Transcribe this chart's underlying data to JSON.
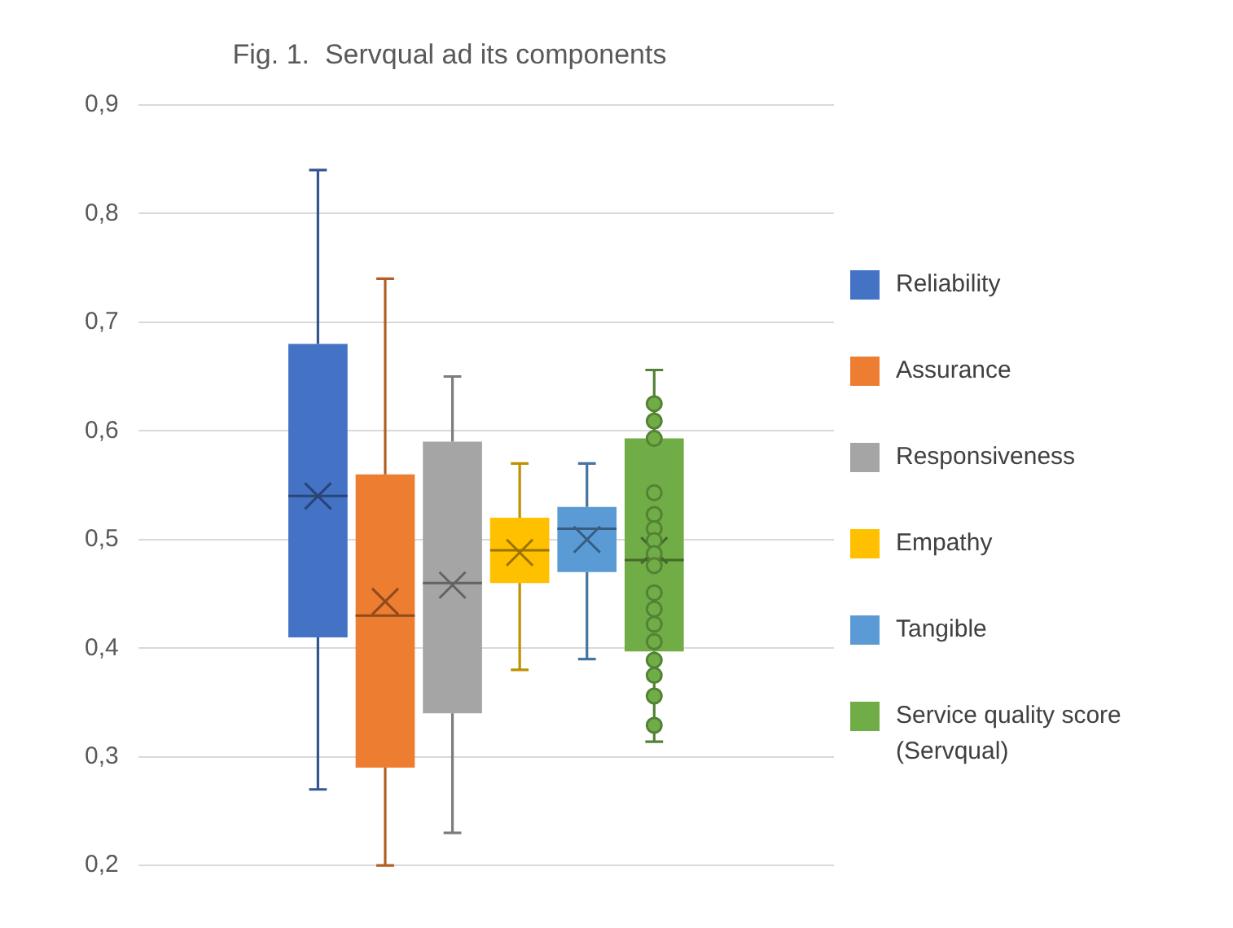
{
  "chart_data": {
    "type": "box",
    "title": "Fig. 1.  Servqual ad its components",
    "categories": [
      null
    ],
    "ylim": [
      0.2,
      0.9
    ],
    "yticks": [
      {
        "value": 0.2,
        "label": "0,2"
      },
      {
        "value": 0.3,
        "label": "0,3"
      },
      {
        "value": 0.4,
        "label": "0,4"
      },
      {
        "value": 0.5,
        "label": "0,5"
      },
      {
        "value": 0.6,
        "label": "0,6"
      },
      {
        "value": 0.7,
        "label": "0,7"
      },
      {
        "value": 0.8,
        "label": "0,8"
      },
      {
        "value": 0.9,
        "label": "0,9"
      }
    ],
    "grid": "y",
    "legend": "right",
    "series": [
      {
        "name": "Reliability",
        "color": "#4472c4",
        "boxes": [
          {
            "low": 0.27,
            "q1": 0.41,
            "median": 0.54,
            "q3": 0.68,
            "high": 0.84,
            "mean": 0.54
          }
        ]
      },
      {
        "name": "Assurance",
        "color": "#ed7d31",
        "boxes": [
          {
            "low": 0.2,
            "q1": 0.29,
            "median": 0.43,
            "q3": 0.56,
            "high": 0.74,
            "mean": 0.443
          }
        ]
      },
      {
        "name": "Responsiveness",
        "color": "#a5a5a5",
        "boxes": [
          {
            "low": 0.23,
            "q1": 0.34,
            "median": 0.46,
            "q3": 0.59,
            "high": 0.65,
            "mean": 0.458
          }
        ]
      },
      {
        "name": "Empathy",
        "color": "#ffc000",
        "boxes": [
          {
            "low": 0.38,
            "q1": 0.46,
            "median": 0.49,
            "q3": 0.52,
            "high": 0.57,
            "mean": 0.488
          }
        ]
      },
      {
        "name": "Tangible",
        "color": "#5b9bd5",
        "boxes": [
          {
            "low": 0.39,
            "q1": 0.47,
            "median": 0.51,
            "q3": 0.53,
            "high": 0.57,
            "mean": 0.5
          }
        ]
      },
      {
        "name": "Service quality score (Servqual)",
        "color": "#70ad47",
        "boxes": [
          {
            "low": 0.314,
            "q1": 0.397,
            "median": 0.481,
            "q3": 0.593,
            "high": 0.656,
            "mean": 0.49
          }
        ]
      },
      {
        "type": "scatter",
        "color": "#70ad47",
        "x": [
          null,
          null,
          null,
          null,
          null,
          null,
          null,
          null,
          null,
          null,
          null,
          null,
          null,
          null,
          null,
          null,
          null
        ],
        "values": [
          0.625,
          0.609,
          0.593,
          0.543,
          0.523,
          0.51,
          0.499,
          0.487,
          0.476,
          0.451,
          0.436,
          0.422,
          0.406,
          0.389,
          0.375,
          0.356,
          0.329
        ]
      }
    ]
  }
}
